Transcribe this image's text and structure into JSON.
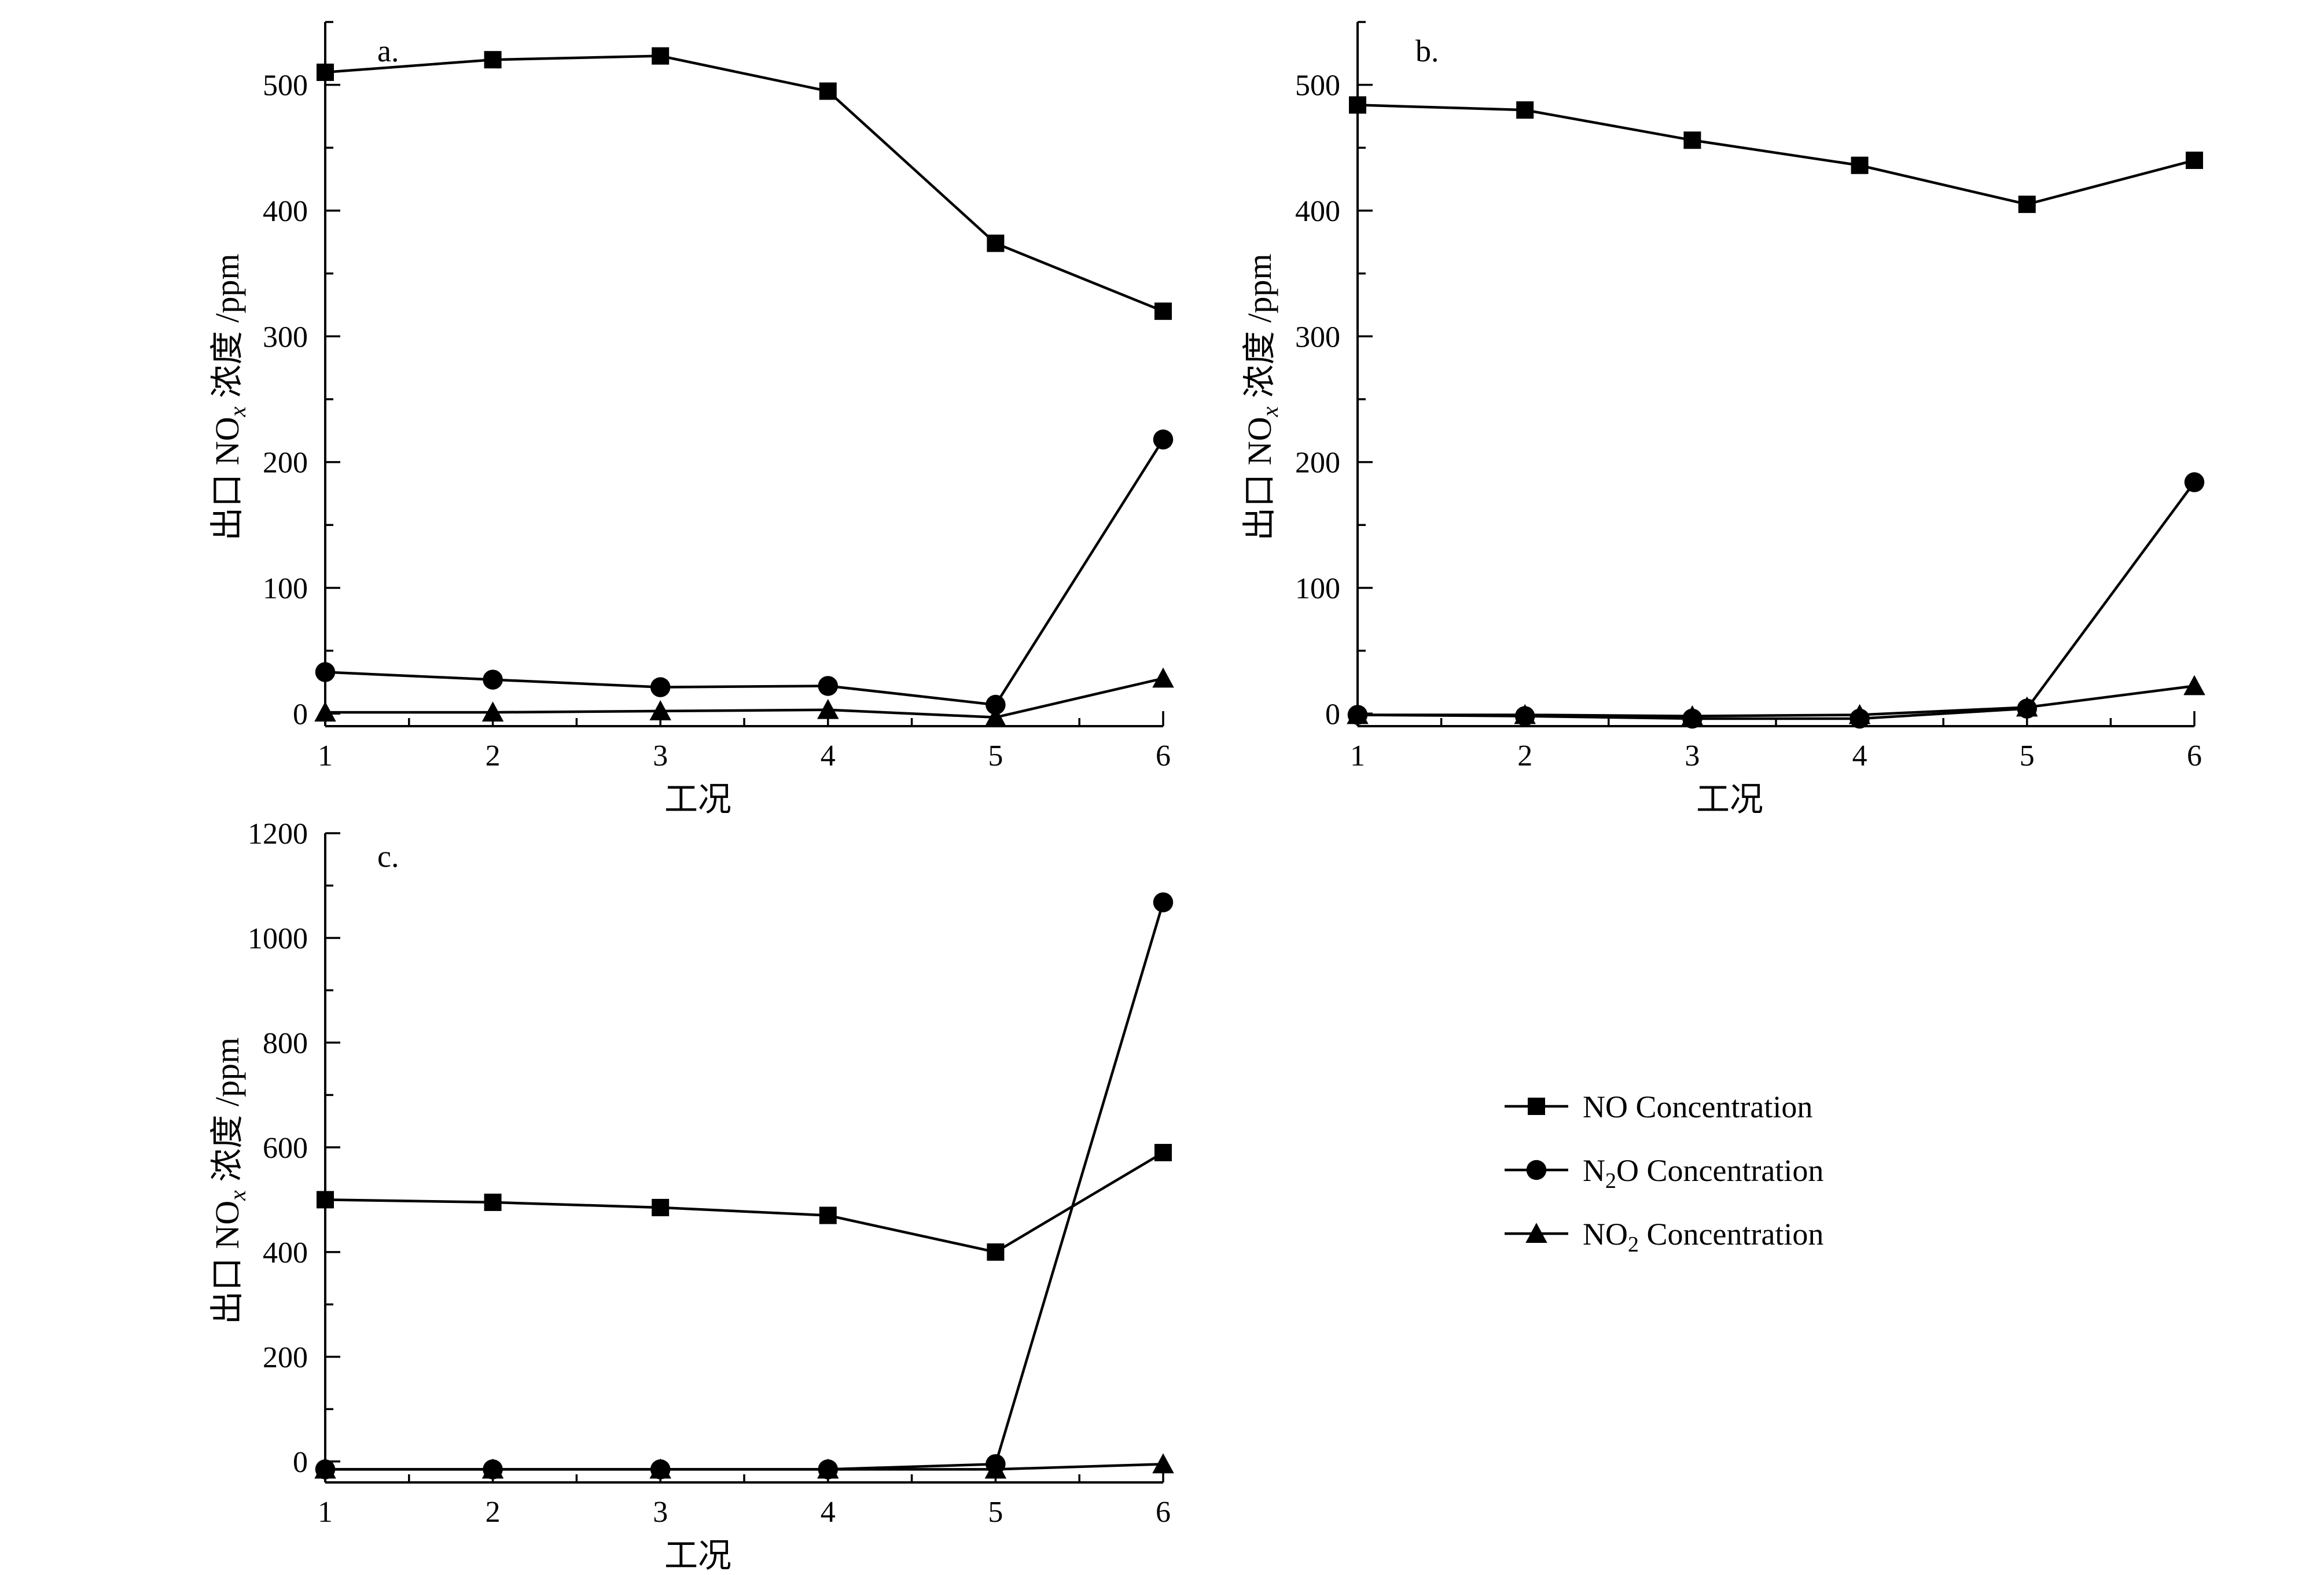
{
  "chart_data": [
    {
      "type": "line",
      "panel_label": "a.",
      "xlabel": "工况",
      "ylabel": "出口 NO",
      "ylabel_sub": "x",
      "ylabel_tail": " 浓度 /ppm",
      "xlim": [
        1,
        6
      ],
      "ylim": [
        -10,
        550
      ],
      "xticks": [
        1,
        2,
        3,
        4,
        5,
        6
      ],
      "yticks": [
        0,
        100,
        200,
        300,
        400,
        500
      ],
      "x": [
        1,
        2,
        3,
        4,
        5,
        6
      ],
      "series": [
        {
          "name": "NO Concentration",
          "marker": "square",
          "values": [
            510,
            520,
            523,
            495,
            374,
            320
          ]
        },
        {
          "name": "N2O Concentration",
          "marker": "circle",
          "values": [
            33,
            27,
            21,
            22,
            7,
            218
          ]
        },
        {
          "name": "NO2 Concentration",
          "marker": "triangle",
          "values": [
            1,
            1,
            2,
            3,
            -3,
            28
          ]
        }
      ]
    },
    {
      "type": "line",
      "panel_label": "b.",
      "xlabel": "工况",
      "ylabel": "出口 NO",
      "ylabel_sub": "x",
      "ylabel_tail": " 浓度 /ppm",
      "xlim": [
        1,
        6
      ],
      "ylim": [
        -10,
        550
      ],
      "xticks": [
        1,
        2,
        3,
        4,
        5,
        6
      ],
      "yticks": [
        0,
        100,
        200,
        300,
        400,
        500
      ],
      "x": [
        1,
        2,
        3,
        4,
        5,
        6
      ],
      "series": [
        {
          "name": "NO Concentration",
          "marker": "square",
          "values": [
            484,
            480,
            456,
            436,
            405,
            440
          ]
        },
        {
          "name": "N2O Concentration",
          "marker": "circle",
          "values": [
            -1,
            -2,
            -4,
            -4,
            4,
            184
          ]
        },
        {
          "name": "NO2 Concentration",
          "marker": "triangle",
          "values": [
            -1,
            -1,
            -2,
            -1,
            5,
            22
          ]
        }
      ]
    },
    {
      "type": "line",
      "panel_label": "c.",
      "xlabel": "工况",
      "ylabel": "出口 NO",
      "ylabel_sub": "x",
      "ylabel_tail": " 浓度 /ppm",
      "xlim": [
        1,
        6
      ],
      "ylim": [
        -40,
        1200
      ],
      "xticks": [
        1,
        2,
        3,
        4,
        5,
        6
      ],
      "yticks": [
        0,
        200,
        400,
        600,
        800,
        1000,
        1200
      ],
      "x": [
        1,
        2,
        3,
        4,
        5,
        6
      ],
      "series": [
        {
          "name": "NO Concentration",
          "marker": "square",
          "values": [
            500,
            495,
            485,
            470,
            400,
            590
          ]
        },
        {
          "name": "N2O Concentration",
          "marker": "circle",
          "values": [
            -15,
            -15,
            -15,
            -15,
            -5,
            1068
          ]
        },
        {
          "name": "NO2 Concentration",
          "marker": "triangle",
          "values": [
            -15,
            -15,
            -15,
            -15,
            -15,
            -5
          ]
        }
      ]
    }
  ],
  "legend": {
    "placement": "bottom-right",
    "items": [
      {
        "marker": "square",
        "text": "NO Concentration"
      },
      {
        "marker": "circle",
        "pre": "N",
        "sub": "2",
        "post": "O Concentration"
      },
      {
        "marker": "triangle",
        "pre": "NO",
        "sub": "2",
        "post": " Concentration"
      }
    ]
  }
}
